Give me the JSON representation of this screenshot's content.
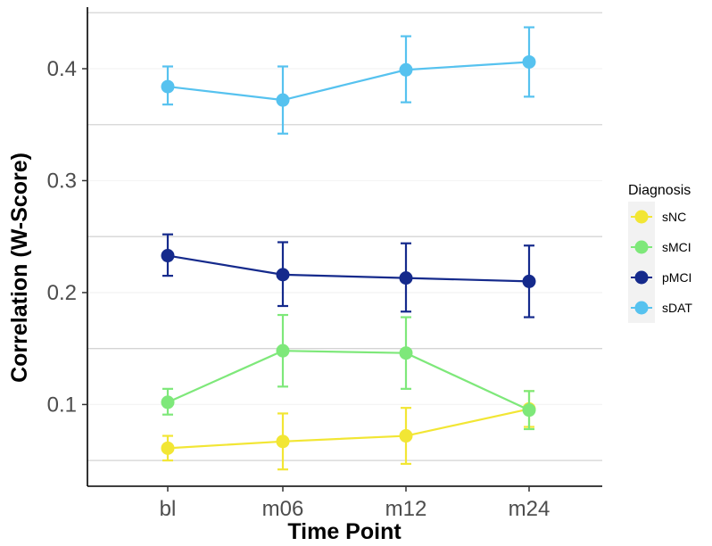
{
  "chart_data": {
    "type": "line",
    "xlabel": "Time Point",
    "ylabel": "Correlation (W-Score)",
    "categories": [
      "bl",
      "m06",
      "m12",
      "m24"
    ],
    "ylim": [
      0.027,
      0.455
    ],
    "yticks": [
      0.1,
      0.2,
      0.3,
      0.4
    ],
    "ytick_labels": [
      "0.1",
      "0.2",
      "0.3",
      "0.4"
    ],
    "grid": true,
    "legend": {
      "title": "Diagnosis",
      "position": "right"
    },
    "series": [
      {
        "name": "sNC",
        "color": "#f2e634",
        "values": [
          0.061,
          0.067,
          0.072,
          0.096
        ],
        "err_low": [
          0.05,
          0.042,
          0.047,
          0.08
        ],
        "err_high": [
          0.072,
          0.092,
          0.097,
          0.112
        ]
      },
      {
        "name": "sMCI",
        "color": "#7ee87a",
        "values": [
          0.102,
          0.148,
          0.146,
          0.095
        ],
        "err_low": [
          0.091,
          0.116,
          0.114,
          0.078
        ],
        "err_high": [
          0.114,
          0.18,
          0.178,
          0.112
        ]
      },
      {
        "name": "pMCI",
        "color": "#152a8c",
        "values": [
          0.233,
          0.216,
          0.213,
          0.21
        ],
        "err_low": [
          0.215,
          0.188,
          0.183,
          0.178
        ],
        "err_high": [
          0.252,
          0.245,
          0.244,
          0.242
        ]
      },
      {
        "name": "sDAT",
        "color": "#56c2ef",
        "values": [
          0.384,
          0.372,
          0.399,
          0.406
        ],
        "err_low": [
          0.368,
          0.342,
          0.37,
          0.375
        ],
        "err_high": [
          0.402,
          0.402,
          0.429,
          0.437
        ]
      }
    ]
  }
}
